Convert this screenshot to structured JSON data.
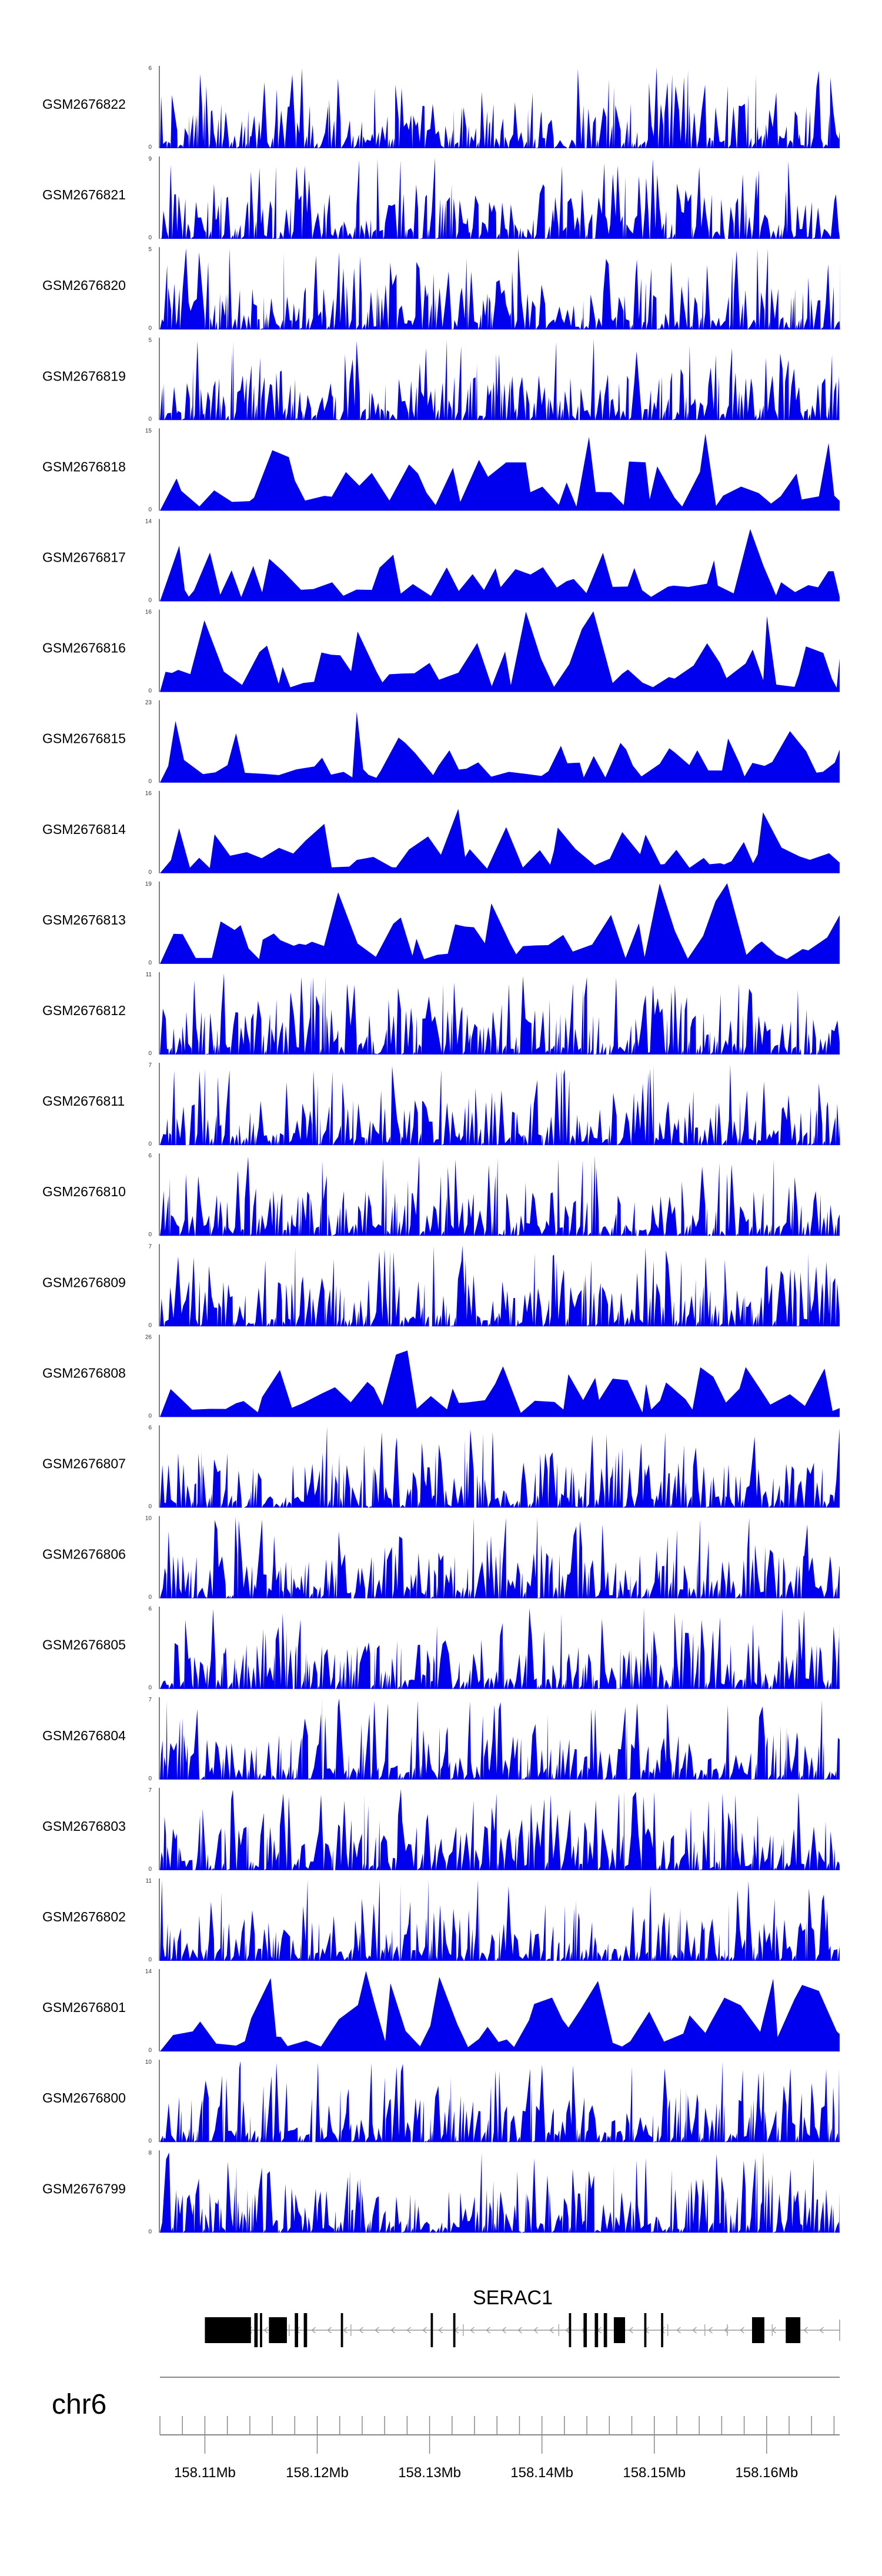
{
  "chart_data": {
    "type": "area",
    "chromosome": "chr6",
    "gene": {
      "name": "SERAC1",
      "strand": "-",
      "start": 158.11,
      "end": 158.1665,
      "exons": [
        [
          158.11,
          158.1141
        ],
        [
          158.1144,
          158.1147
        ],
        [
          158.1149,
          158.1151
        ],
        [
          158.1157,
          158.1173
        ],
        [
          158.118,
          158.1183
        ],
        [
          158.1188,
          158.1191
        ],
        [
          158.1221,
          158.1223
        ],
        [
          158.1301,
          158.1303
        ],
        [
          158.1321,
          158.1323
        ],
        [
          158.1424,
          158.1426
        ],
        [
          158.1437,
          158.144
        ],
        [
          158.1447,
          158.145
        ],
        [
          158.1455,
          158.1458
        ],
        [
          158.1464,
          158.1474
        ],
        [
          158.1491,
          158.1493
        ],
        [
          158.1506,
          158.1508
        ],
        [
          158.1587,
          158.1598
        ],
        [
          158.1617,
          158.163
        ]
      ],
      "ticks": [
        158.1175,
        158.123,
        158.133,
        158.1415,
        158.1512,
        158.1545,
        158.1565,
        158.1605
      ]
    },
    "axis": {
      "xlim": [
        158.106,
        158.1665
      ],
      "tick_labels": [
        "158.11Mb",
        "158.12Mb",
        "158.13Mb",
        "158.14Mb",
        "158.15Mb",
        "158.16Mb"
      ],
      "tick_values": [
        158.11,
        158.12,
        158.13,
        158.14,
        158.15,
        158.16
      ],
      "minor_tick_step": 0.002
    },
    "colors": {
      "signal": "#0000ee",
      "gene": "#000000",
      "axis": "#444444"
    },
    "series": [
      {
        "name": "GSM2676822",
        "ymax": "6",
        "ymin": "0",
        "seed": 22
      },
      {
        "name": "GSM2676821",
        "ymax": "9",
        "ymin": "0",
        "seed": 21
      },
      {
        "name": "GSM2676820",
        "ymax": "5",
        "ymin": "0",
        "seed": 20
      },
      {
        "name": "GSM2676819",
        "ymax": "5",
        "ymin": "0",
        "seed": 19
      },
      {
        "name": "GSM2676818",
        "ymax": "15",
        "ymin": "0",
        "seed": 18
      },
      {
        "name": "GSM2676817",
        "ymax": "14",
        "ymin": "0",
        "seed": 17
      },
      {
        "name": "GSM2676816",
        "ymax": "16",
        "ymin": "0",
        "seed": 16
      },
      {
        "name": "GSM2676815",
        "ymax": "23",
        "ymin": "0",
        "seed": 15
      },
      {
        "name": "GSM2676814",
        "ymax": "16",
        "ymin": "0",
        "seed": 14
      },
      {
        "name": "GSM2676813",
        "ymax": "19",
        "ymin": "0",
        "seed": 13
      },
      {
        "name": "GSM2676812",
        "ymax": "11",
        "ymin": "0",
        "seed": 12
      },
      {
        "name": "GSM2676811",
        "ymax": "7",
        "ymin": "0",
        "seed": 11
      },
      {
        "name": "GSM2676810",
        "ymax": "6",
        "ymin": "0",
        "seed": 10
      },
      {
        "name": "GSM2676809",
        "ymax": "7",
        "ymin": "0",
        "seed": 9
      },
      {
        "name": "GSM2676808",
        "ymax": "26",
        "ymin": "0",
        "seed": 8
      },
      {
        "name": "GSM2676807",
        "ymax": "6",
        "ymin": "0",
        "seed": 7
      },
      {
        "name": "GSM2676806",
        "ymax": "10",
        "ymin": "0",
        "seed": 6
      },
      {
        "name": "GSM2676805",
        "ymax": "6",
        "ymin": "0",
        "seed": 5
      },
      {
        "name": "GSM2676804",
        "ymax": "7",
        "ymin": "0",
        "seed": 4
      },
      {
        "name": "GSM2676803",
        "ymax": "7",
        "ymin": "0",
        "seed": 3
      },
      {
        "name": "GSM2676802",
        "ymax": "11",
        "ymin": "0",
        "seed": 2
      },
      {
        "name": "GSM2676801",
        "ymax": "14",
        "ymin": "0",
        "seed": 1
      },
      {
        "name": "GSM2676800",
        "ymax": "10",
        "ymin": "0",
        "seed": 0
      },
      {
        "name": "GSM2676799",
        "ymax": "8",
        "ymin": "0",
        "seed": 99
      }
    ]
  }
}
